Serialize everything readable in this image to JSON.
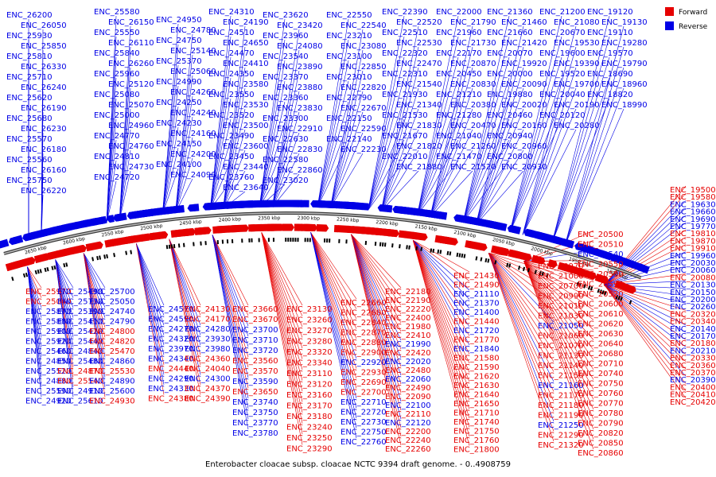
{
  "title": "Enterobacter cloacae subsp. cloacae NCTC 9394 draft genome. - 0..4908759",
  "legend": [
    {
      "label": "Forward",
      "color": "#e60000"
    },
    {
      "label": "Reverse",
      "color": "#0000e6"
    }
  ],
  "colors": {
    "forward": "#e60000",
    "reverse": "#0000e6",
    "backbone": "#555555"
  },
  "ticks": [
    "1900 kbp",
    "1950 kbp",
    "2000 kbp",
    "2050 kbp",
    "2100 kbp",
    "2150 kbp",
    "2200 kbp",
    "2250 kbp",
    "2300 kbp",
    "2350 kbp",
    "2400 kbp",
    "2450 kbp",
    "2500 kbp",
    "2550 kbp",
    "2600 kbp",
    "2650 kbp"
  ],
  "reverse_labels": [
    "ENC_26200",
    "ENC_26050",
    "ENC_25930",
    "ENC_25850",
    "ENC_25810",
    "ENC_26330",
    "ENC_25710",
    "ENC_26240",
    "ENC_25620",
    "ENC_26190",
    "ENC_25680",
    "ENC_26230",
    "ENC_25570",
    "ENC_26180",
    "ENC_25560",
    "ENC_26160",
    "ENC_25750",
    "ENC_26220",
    "ENC_25580",
    "ENC_26150",
    "ENC_25550",
    "ENC_26110",
    "ENC_25840",
    "ENC_26260",
    "ENC_25960",
    "ENC_25120",
    "ENC_25080",
    "ENC_25070",
    "ENC_25000",
    "ENC_24960",
    "ENC_24770",
    "ENC_24760",
    "ENC_24810",
    "ENC_24730",
    "ENC_24720",
    "ENC_24950",
    "ENC_24780",
    "ENC_24750",
    "ENC_25140",
    "ENC_25370",
    "ENC_25060",
    "ENC_24990",
    "ENC_24260",
    "ENC_24250",
    "ENC_24240",
    "ENC_24230",
    "ENC_24160",
    "ENC_24150",
    "ENC_24200",
    "ENC_24100",
    "ENC_24090",
    "ENC_24310",
    "ENC_24190",
    "ENC_24510",
    "ENC_24650",
    "ENC_24470",
    "ENC_24410",
    "ENC_24350",
    "ENC_23580",
    "ENC_23550",
    "ENC_23530",
    "ENC_23520",
    "ENC_23500",
    "ENC_23490",
    "ENC_23600",
    "ENC_23450",
    "ENC_23440",
    "ENC_23760",
    "ENC_23640",
    "ENC_23620",
    "ENC_23420",
    "ENC_23960",
    "ENC_24080",
    "ENC_23540",
    "ENC_23890",
    "ENC_23370",
    "ENC_23880",
    "ENC_23360",
    "ENC_23830",
    "ENC_23300",
    "ENC_22910",
    "ENC_22630",
    "ENC_22830",
    "ENC_22580",
    "ENC_22860",
    "ENC_23020",
    "ENC_22550",
    "ENC_22540",
    "ENC_23210",
    "ENC_23080",
    "ENC_23100",
    "ENC_22850",
    "ENC_23010",
    "ENC_22820",
    "ENC_22790",
    "ENC_22670",
    "ENC_22150",
    "ENC_22590",
    "ENC_22140",
    "ENC_22230",
    "ENC_22390",
    "ENC_22520",
    "ENC_22510",
    "ENC_22530",
    "ENC_22320",
    "ENC_22470",
    "ENC_22310",
    "ENC_21540",
    "ENC_21930",
    "ENC_21340",
    "ENC_21530",
    "ENC_21830",
    "ENC_21670",
    "ENC_21820",
    "ENC_22010",
    "ENC_21880",
    "ENC_22000",
    "ENC_21790",
    "ENC_21960",
    "ENC_21730",
    "ENC_22170",
    "ENC_20870",
    "ENC_20450",
    "ENC_20830",
    "ENC_21210",
    "ENC_20380",
    "ENC_21280",
    "ENC_20470",
    "ENC_21040",
    "ENC_21260",
    "ENC_21470",
    "ENC_21520",
    "ENC_21360",
    "ENC_21460",
    "ENC_21660",
    "ENC_21420",
    "ENC_20070",
    "ENC_19920",
    "ENC_20000",
    "ENC_20090",
    "ENC_19880",
    "ENC_20020",
    "ENC_20460",
    "ENC_20160",
    "ENC_20940",
    "ENC_20960",
    "ENC_20800",
    "ENC_20930",
    "ENC_21200",
    "ENC_21080",
    "ENC_20670",
    "ENC_19530",
    "ENC_19600",
    "ENC_19390",
    "ENC_19520",
    "ENC_19700",
    "ENC_20040",
    "ENC_20190",
    "ENC_20120",
    "ENC_20280",
    "ENC_19120",
    "ENC_19130",
    "ENC_19110",
    "ENC_19280",
    "ENC_19570",
    "ENC_19790",
    "ENC_18690",
    "ENC_18960",
    "ENC_18820",
    "ENC_18990"
  ],
  "right_labels": [
    {
      "t": "ENC_19500",
      "f": "r"
    },
    {
      "t": "ENC_19580",
      "f": "r"
    },
    {
      "t": "ENC_19630",
      "f": "b"
    },
    {
      "t": "ENC_19660",
      "f": "b"
    },
    {
      "t": "ENC_19690",
      "f": "b"
    },
    {
      "t": "ENC_19770",
      "f": "b"
    },
    {
      "t": "ENC_19810",
      "f": "r"
    },
    {
      "t": "ENC_19870",
      "f": "r"
    },
    {
      "t": "ENC_19910",
      "f": "r"
    },
    {
      "t": "ENC_19960",
      "f": "b"
    },
    {
      "t": "ENC_20030",
      "f": "b"
    },
    {
      "t": "ENC_20060",
      "f": "b"
    },
    {
      "t": "ENC_20080",
      "f": "r"
    },
    {
      "t": "ENC_20130",
      "f": "b"
    },
    {
      "t": "ENC_20150",
      "f": "b"
    },
    {
      "t": "ENC_20200",
      "f": "b"
    },
    {
      "t": "ENC_20260",
      "f": "b"
    },
    {
      "t": "ENC_20320",
      "f": "r"
    },
    {
      "t": "ENC_20340",
      "f": "r"
    },
    {
      "t": "ENC_20140",
      "f": "b"
    },
    {
      "t": "ENC_20170",
      "f": "b"
    },
    {
      "t": "ENC_20180",
      "f": "r"
    },
    {
      "t": "ENC_20210",
      "f": "b"
    },
    {
      "t": "ENC_20330",
      "f": "r"
    },
    {
      "t": "ENC_20360",
      "f": "r"
    },
    {
      "t": "ENC_20370",
      "f": "r"
    },
    {
      "t": "ENC_20390",
      "f": "b"
    },
    {
      "t": "ENC_20400",
      "f": "r"
    },
    {
      "t": "ENC_20410",
      "f": "r"
    },
    {
      "t": "ENC_20420",
      "f": "r"
    }
  ],
  "mid_right_labels": [
    {
      "t": "ENC_20500",
      "f": "r"
    },
    {
      "t": "ENC_20510",
      "f": "r"
    },
    {
      "t": "ENC_20540",
      "f": "b"
    },
    {
      "t": "ENC_20550",
      "f": "r"
    },
    {
      "t": "ENC_20580",
      "f": "r"
    },
    {
      "t": "ENC_20590",
      "f": "r"
    },
    {
      "t": "ENC_20520",
      "f": "r"
    },
    {
      "t": "ENC_20600",
      "f": "r"
    },
    {
      "t": "ENC_20610",
      "f": "r"
    },
    {
      "t": "ENC_20620",
      "f": "r"
    },
    {
      "t": "ENC_20630",
      "f": "r"
    },
    {
      "t": "ENC_20640",
      "f": "r"
    },
    {
      "t": "ENC_20680",
      "f": "r"
    },
    {
      "t": "ENC_20710",
      "f": "r"
    },
    {
      "t": "ENC_20740",
      "f": "r"
    },
    {
      "t": "ENC_20750",
      "f": "r"
    },
    {
      "t": "ENC_20760",
      "f": "r"
    },
    {
      "t": "ENC_20770",
      "f": "r"
    },
    {
      "t": "ENC_20780",
      "f": "r"
    },
    {
      "t": "ENC_20790",
      "f": "r"
    },
    {
      "t": "ENC_20820",
      "f": "r"
    },
    {
      "t": "ENC_20850",
      "f": "r"
    },
    {
      "t": "ENC_20860",
      "f": "r"
    }
  ],
  "center_right_labels": [
    {
      "t": "ENC_20970",
      "f": "r"
    },
    {
      "t": "ENC_21000",
      "f": "r"
    },
    {
      "t": "ENC_20700",
      "f": "r"
    },
    {
      "t": "ENC_20990",
      "f": "r"
    },
    {
      "t": "ENC_21010",
      "f": "r"
    },
    {
      "t": "ENC_21030",
      "f": "r"
    },
    {
      "t": "ENC_21050",
      "f": "b"
    },
    {
      "t": "ENC_21060",
      "f": "r"
    },
    {
      "t": "ENC_21070",
      "f": "r"
    },
    {
      "t": "ENC_21130",
      "f": "r"
    },
    {
      "t": "ENC_21140",
      "f": "r"
    },
    {
      "t": "ENC_21150",
      "f": "r"
    },
    {
      "t": "ENC_21160",
      "f": "b"
    },
    {
      "t": "ENC_21170",
      "f": "r"
    },
    {
      "t": "ENC_21180",
      "f": "r"
    },
    {
      "t": "ENC_21190",
      "f": "r"
    },
    {
      "t": "ENC_21250",
      "f": "b"
    },
    {
      "t": "ENC_21290",
      "f": "r"
    },
    {
      "t": "ENC_21320",
      "f": "r"
    }
  ],
  "center_labels": [
    {
      "t": "ENC_21430",
      "f": "r"
    },
    {
      "t": "ENC_21490",
      "f": "r"
    },
    {
      "t": "ENC_21110",
      "f": "b"
    },
    {
      "t": "ENC_21370",
      "f": "b"
    },
    {
      "t": "ENC_21400",
      "f": "b"
    },
    {
      "t": "ENC_21440",
      "f": "r"
    },
    {
      "t": "ENC_21720",
      "f": "b"
    },
    {
      "t": "ENC_21770",
      "f": "r"
    },
    {
      "t": "ENC_21840",
      "f": "b"
    },
    {
      "t": "ENC_21580",
      "f": "r"
    },
    {
      "t": "ENC_21590",
      "f": "r"
    },
    {
      "t": "ENC_21620",
      "f": "r"
    },
    {
      "t": "ENC_21630",
      "f": "r"
    },
    {
      "t": "ENC_21640",
      "f": "r"
    },
    {
      "t": "ENC_21650",
      "f": "r"
    },
    {
      "t": "ENC_21710",
      "f": "r"
    },
    {
      "t": "ENC_21740",
      "f": "r"
    },
    {
      "t": "ENC_21750",
      "f": "r"
    },
    {
      "t": "ENC_21760",
      "f": "r"
    },
    {
      "t": "ENC_21800",
      "f": "r"
    },
    {
      "t": "ENC_21850",
      "f": "r"
    }
  ],
  "center_left_labels": [
    {
      "t": "ENC_22180",
      "f": "r"
    },
    {
      "t": "ENC_22190",
      "f": "r"
    },
    {
      "t": "ENC_22220",
      "f": "r"
    },
    {
      "t": "ENC_22400",
      "f": "r"
    },
    {
      "t": "ENC_21980",
      "f": "r"
    },
    {
      "t": "ENC_22410",
      "f": "r"
    },
    {
      "t": "ENC_21990",
      "f": "b"
    },
    {
      "t": "ENC_22420",
      "f": "r"
    },
    {
      "t": "ENC_22020",
      "f": "b"
    },
    {
      "t": "ENC_22480",
      "f": "r"
    },
    {
      "t": "ENC_22060",
      "f": "b"
    },
    {
      "t": "ENC_22490",
      "f": "r"
    },
    {
      "t": "ENC_22090",
      "f": "r"
    },
    {
      "t": "ENC_22100",
      "f": "b"
    },
    {
      "t": "ENC_22110",
      "f": "r"
    },
    {
      "t": "ENC_22120",
      "f": "b"
    },
    {
      "t": "ENC_22200",
      "f": "r"
    },
    {
      "t": "ENC_22240",
      "f": "r"
    },
    {
      "t": "ENC_22260",
      "f": "r"
    },
    {
      "t": "ENC_22290",
      "f": "r"
    }
  ],
  "mid_labels": [
    {
      "t": "ENC_22660",
      "f": "r"
    },
    {
      "t": "ENC_22680",
      "f": "r"
    },
    {
      "t": "ENC_22840",
      "f": "r"
    },
    {
      "t": "ENC_22870",
      "f": "r"
    },
    {
      "t": "ENC_22880",
      "f": "r"
    },
    {
      "t": "ENC_22900",
      "f": "r"
    },
    {
      "t": "ENC_22920",
      "f": "b"
    },
    {
      "t": "ENC_22930",
      "f": "r"
    },
    {
      "t": "ENC_22690",
      "f": "r"
    },
    {
      "t": "ENC_22700",
      "f": "r"
    },
    {
      "t": "ENC_22710",
      "f": "b"
    },
    {
      "t": "ENC_22720",
      "f": "b"
    },
    {
      "t": "ENC_22730",
      "f": "b"
    },
    {
      "t": "ENC_22750",
      "f": "b"
    },
    {
      "t": "ENC_22760",
      "f": "b"
    }
  ],
  "mid_left_labels": [
    {
      "t": "ENC_23130",
      "f": "r"
    },
    {
      "t": "ENC_23260",
      "f": "r"
    },
    {
      "t": "ENC_23270",
      "f": "r"
    },
    {
      "t": "ENC_23280",
      "f": "r"
    },
    {
      "t": "ENC_23320",
      "f": "r"
    },
    {
      "t": "ENC_23340",
      "f": "r"
    },
    {
      "t": "ENC_23110",
      "f": "r"
    },
    {
      "t": "ENC_23120",
      "f": "r"
    },
    {
      "t": "ENC_23160",
      "f": "r"
    },
    {
      "t": "ENC_23170",
      "f": "r"
    },
    {
      "t": "ENC_23180",
      "f": "r"
    },
    {
      "t": "ENC_23240",
      "f": "r"
    },
    {
      "t": "ENC_23250",
      "f": "r"
    },
    {
      "t": "ENC_23290",
      "f": "r"
    }
  ],
  "left_mid_labels": [
    {
      "t": "ENC_23660",
      "f": "r"
    },
    {
      "t": "ENC_23670",
      "f": "r"
    },
    {
      "t": "ENC_23700",
      "f": "b"
    },
    {
      "t": "ENC_23710",
      "f": "b"
    },
    {
      "t": "ENC_23720",
      "f": "b"
    },
    {
      "t": "ENC_23560",
      "f": "r"
    },
    {
      "t": "ENC_23570",
      "f": "r"
    },
    {
      "t": "ENC_23590",
      "f": "b"
    },
    {
      "t": "ENC_23650",
      "f": "r"
    },
    {
      "t": "ENC_23740",
      "f": "b"
    },
    {
      "t": "ENC_23750",
      "f": "b"
    },
    {
      "t": "ENC_23770",
      "f": "b"
    },
    {
      "t": "ENC_23780",
      "f": "b"
    }
  ],
  "left_labels": [
    {
      "t": "ENC_24570",
      "f": "b"
    },
    {
      "t": "ENC_24130",
      "f": "r"
    },
    {
      "t": "ENC_24590",
      "f": "b"
    },
    {
      "t": "ENC_24170",
      "f": "r"
    },
    {
      "t": "ENC_24270",
      "f": "b"
    },
    {
      "t": "ENC_24280",
      "f": "b"
    },
    {
      "t": "ENC_24320",
      "f": "b"
    },
    {
      "t": "ENC_23930",
      "f": "b"
    },
    {
      "t": "ENC_23970",
      "f": "b"
    },
    {
      "t": "ENC_23980",
      "f": "b"
    },
    {
      "t": "ENC_24340",
      "f": "b"
    },
    {
      "t": "ENC_24360",
      "f": "r"
    },
    {
      "t": "ENC_24440",
      "f": "r"
    },
    {
      "t": "ENC_24040",
      "f": "r"
    },
    {
      "t": "ENC_24290",
      "f": "b"
    },
    {
      "t": "ENC_24300",
      "f": "b"
    },
    {
      "t": "ENC_24330",
      "f": "b"
    },
    {
      "t": "ENC_24370",
      "f": "r"
    },
    {
      "t": "ENC_24380",
      "f": "r"
    },
    {
      "t": "ENC_24390",
      "f": "r"
    }
  ],
  "far_left_labels": [
    {
      "t": "ENC_25970",
      "f": "r"
    },
    {
      "t": "ENC_25490",
      "f": "b"
    },
    {
      "t": "ENC_25700",
      "f": "b"
    },
    {
      "t": "ENC_25040",
      "f": "r"
    },
    {
      "t": "ENC_25730",
      "f": "b"
    },
    {
      "t": "ENC_25050",
      "f": "b"
    },
    {
      "t": "ENC_25870",
      "f": "b"
    },
    {
      "t": "ENC_25390",
      "f": "b"
    },
    {
      "t": "ENC_24740",
      "f": "b"
    },
    {
      "t": "ENC_25880",
      "f": "b"
    },
    {
      "t": "ENC_25410",
      "f": "b"
    },
    {
      "t": "ENC_24790",
      "f": "b"
    },
    {
      "t": "ENC_25900",
      "f": "b"
    },
    {
      "t": "ENC_25420",
      "f": "b"
    },
    {
      "t": "ENC_24800",
      "f": "r"
    },
    {
      "t": "ENC_25920",
      "f": "b"
    },
    {
      "t": "ENC_25440",
      "f": "b"
    },
    {
      "t": "ENC_24820",
      "f": "r"
    },
    {
      "t": "ENC_25460",
      "f": "b"
    },
    {
      "t": "ENC_24840",
      "f": "b"
    },
    {
      "t": "ENC_25470",
      "f": "r"
    },
    {
      "t": "ENC_24850",
      "f": "b"
    },
    {
      "t": "ENC_25480",
      "f": "b"
    },
    {
      "t": "ENC_24860",
      "f": "b"
    },
    {
      "t": "ENC_25520",
      "f": "b"
    },
    {
      "t": "ENC_24870",
      "f": "r"
    },
    {
      "t": "ENC_25530",
      "f": "r"
    },
    {
      "t": "ENC_24880",
      "f": "b"
    },
    {
      "t": "ENC_25540",
      "f": "r"
    },
    {
      "t": "ENC_24890",
      "f": "b"
    },
    {
      "t": "ENC_25590",
      "f": "b"
    },
    {
      "t": "ENC_24910",
      "f": "b"
    },
    {
      "t": "ENC_25600",
      "f": "b"
    },
    {
      "t": "ENC_24920",
      "f": "b"
    },
    {
      "t": "ENC_25610",
      "f": "b"
    },
    {
      "t": "ENC_24930",
      "f": "r"
    }
  ]
}
